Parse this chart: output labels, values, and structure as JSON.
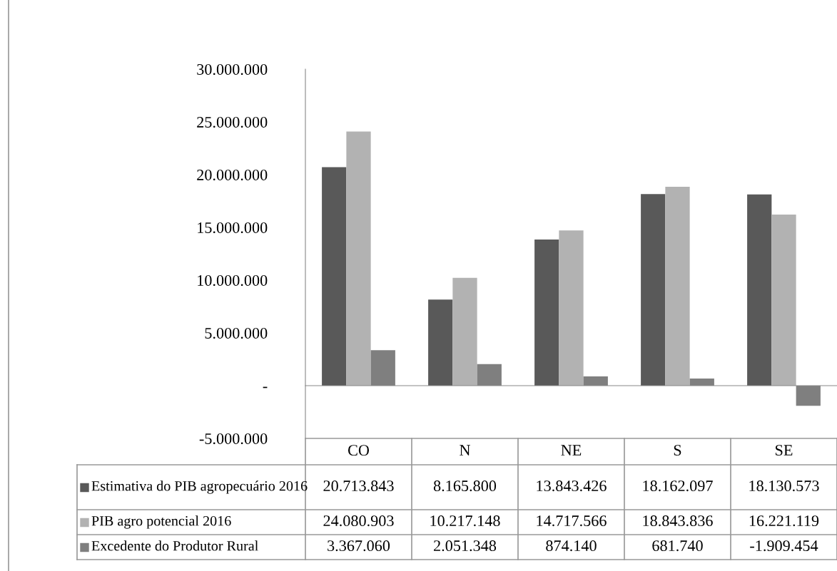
{
  "chart_data": {
    "type": "bar",
    "categories": [
      "CO",
      "N",
      "NE",
      "S",
      "SE"
    ],
    "series": [
      {
        "name": "Estimativa do PIB agropecuário 2016",
        "color": "#595959",
        "values": [
          20713843,
          8165800,
          13843426,
          18162097,
          18130573
        ],
        "value_labels": [
          "20.713.843",
          "8.165.800",
          "13.843.426",
          "18.162.097",
          "18.130.573"
        ]
      },
      {
        "name": "PIB agro potencial 2016",
        "color": "#b2b2b2",
        "values": [
          24080903,
          10217148,
          14717566,
          18843836,
          16221119
        ],
        "value_labels": [
          "24.080.903",
          "10.217.148",
          "14.717.566",
          "18.843.836",
          "16.221.119"
        ]
      },
      {
        "name": "Excedente do Produtor Rural",
        "color": "#7f7f7f",
        "values": [
          3367060,
          2051348,
          874140,
          681740,
          -1909454
        ],
        "value_labels": [
          "3.367.060",
          "2.051.348",
          "874.140",
          "681.740",
          "-1.909.454"
        ]
      }
    ],
    "ylim": [
      -5000000,
      30000000
    ],
    "yticks": [
      {
        "value": -5000000,
        "label": "-5.000.000"
      },
      {
        "value": 0,
        "label": "-"
      },
      {
        "value": 5000000,
        "label": "5.000.000"
      },
      {
        "value": 10000000,
        "label": "10.000.000"
      },
      {
        "value": 15000000,
        "label": "15.000.000"
      },
      {
        "value": 20000000,
        "label": "20.000.000"
      },
      {
        "value": 25000000,
        "label": "25.000.000"
      },
      {
        "value": 30000000,
        "label": "30.000.000"
      }
    ],
    "legend": "bottom"
  }
}
